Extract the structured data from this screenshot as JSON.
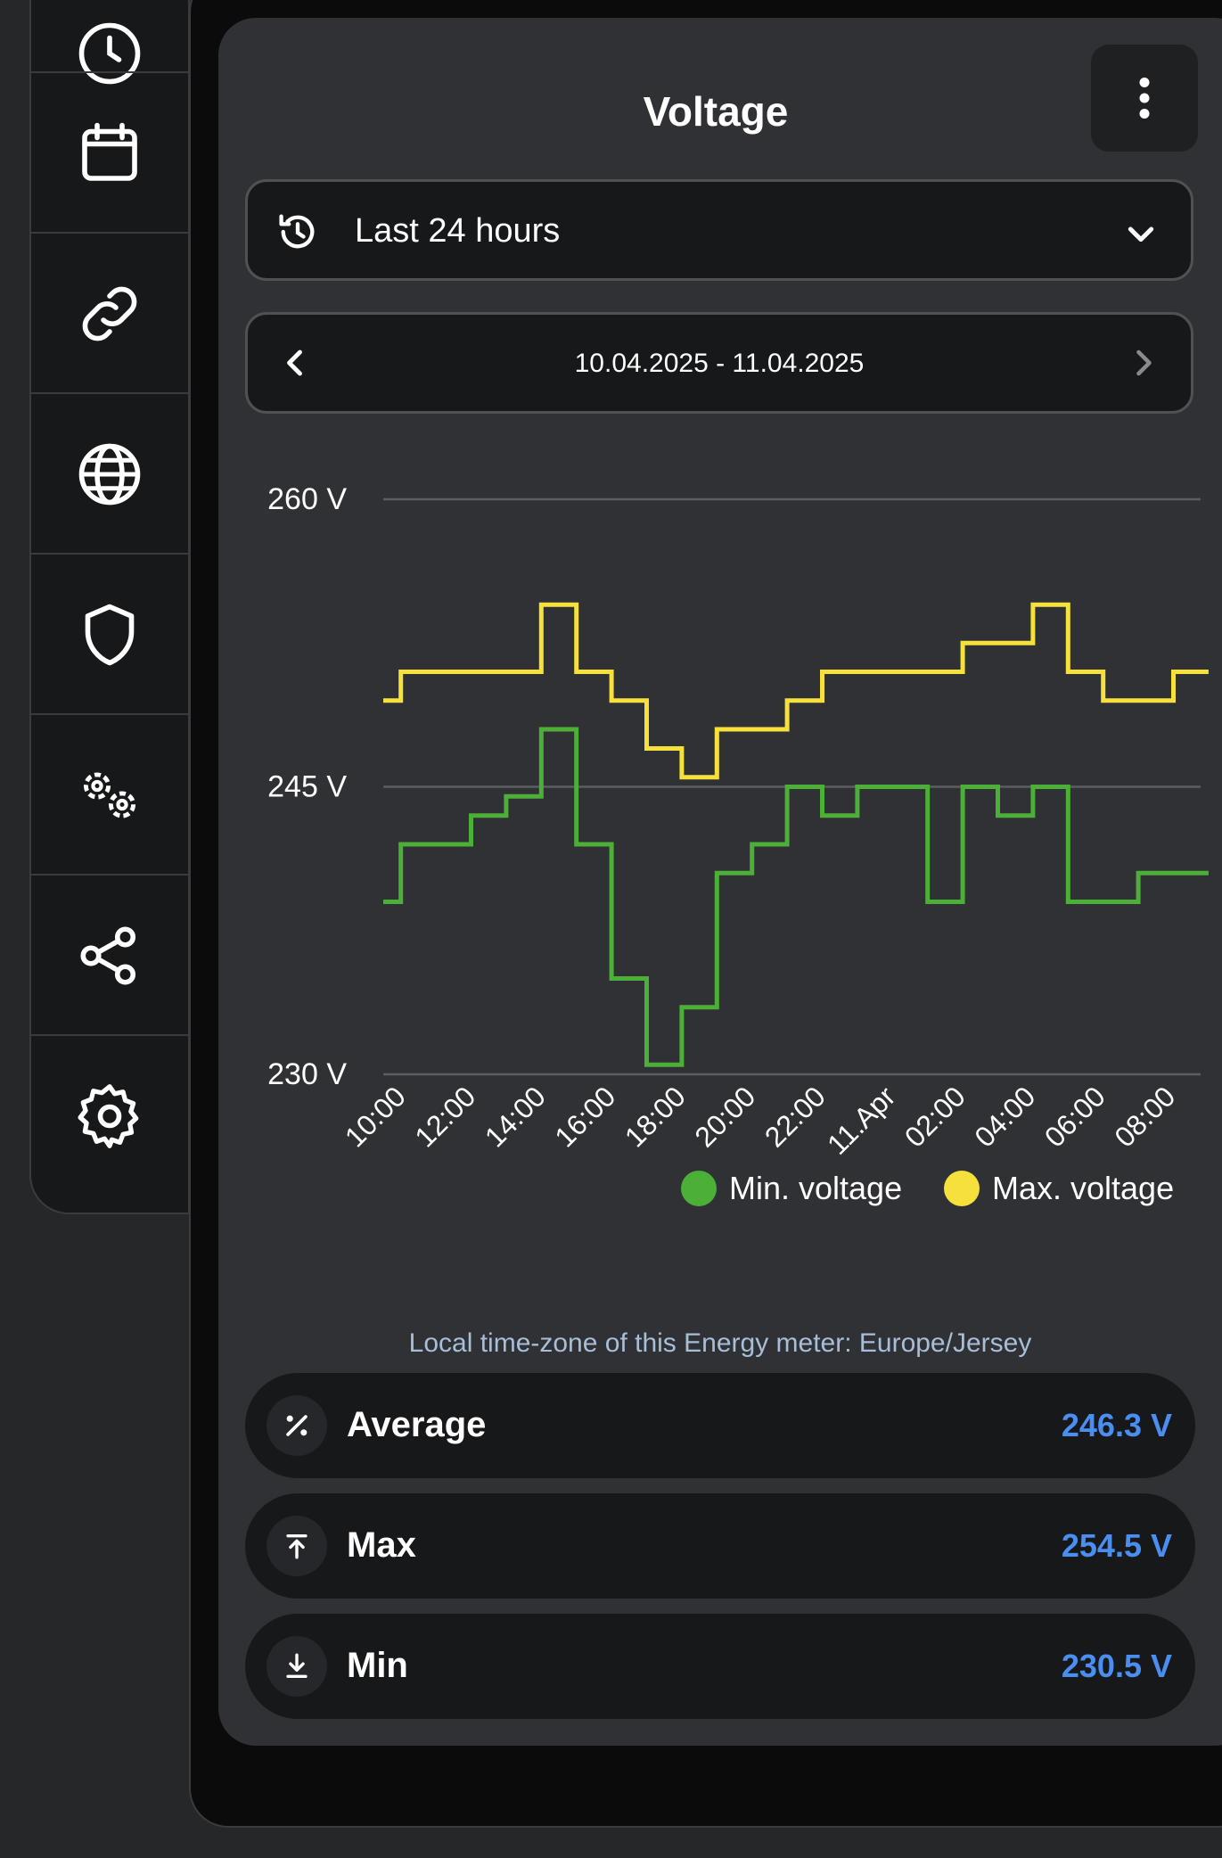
{
  "card": {
    "title": "Voltage"
  },
  "range": {
    "selected": "Last 24 hours"
  },
  "date_nav": {
    "label": "10.04.2025 - 11.04.2025"
  },
  "timezone_note": "Local time-zone of this Energy meter: Europe/Jersey",
  "stats": [
    {
      "label": "Average",
      "value": "246.3 V",
      "icon": "percent-icon"
    },
    {
      "label": "Max",
      "value": "254.5 V",
      "icon": "arrow-up-to-line-icon"
    },
    {
      "label": "Min",
      "value": "230.5 V",
      "icon": "download-icon"
    }
  ],
  "sidebar": {
    "items": [
      {
        "icon": "clock-icon"
      },
      {
        "icon": "calendar-icon"
      },
      {
        "icon": "link-icon"
      },
      {
        "icon": "globe-icon"
      },
      {
        "icon": "shield-icon"
      },
      {
        "icon": "gears-icon"
      },
      {
        "icon": "share-icon"
      },
      {
        "icon": "settings-icon"
      }
    ]
  },
  "colors": {
    "min_series": "#4caf37",
    "max_series": "#f5e03c",
    "accent_value": "#4a8ff0"
  },
  "chart_data": {
    "type": "line",
    "step": true,
    "ylim": [
      230,
      260
    ],
    "y_ticks": [
      "230 V",
      "245 V",
      "260 V"
    ],
    "x_ticks": [
      "10:00",
      "12:00",
      "14:00",
      "16:00",
      "18:00",
      "20:00",
      "22:00",
      "11.Apr",
      "02:00",
      "04:00",
      "06:00",
      "08:00"
    ],
    "x": [
      "10:00",
      "11:00",
      "12:00",
      "13:00",
      "14:00",
      "15:00",
      "16:00",
      "17:00",
      "18:00",
      "19:00",
      "20:00",
      "21:00",
      "22:00",
      "23:00",
      "00:00",
      "01:00",
      "02:00",
      "03:00",
      "04:00",
      "05:00",
      "06:00",
      "07:00",
      "08:00",
      "09:00"
    ],
    "series": [
      {
        "name": "Min. voltage",
        "values": [
          239,
          242,
          242,
          243.5,
          244.5,
          248,
          242,
          235,
          230.5,
          233.5,
          240.5,
          242,
          245,
          243.5,
          245,
          245,
          239,
          245,
          243.5,
          245,
          239,
          239,
          240.5,
          240.5
        ]
      },
      {
        "name": "Max. voltage",
        "values": [
          249.5,
          251,
          251,
          251,
          251,
          254.5,
          251,
          249.5,
          247,
          245.5,
          248,
          248,
          249.5,
          251,
          251,
          251,
          251,
          252.5,
          252.5,
          254.5,
          251,
          249.5,
          249.5,
          251
        ]
      }
    ]
  }
}
